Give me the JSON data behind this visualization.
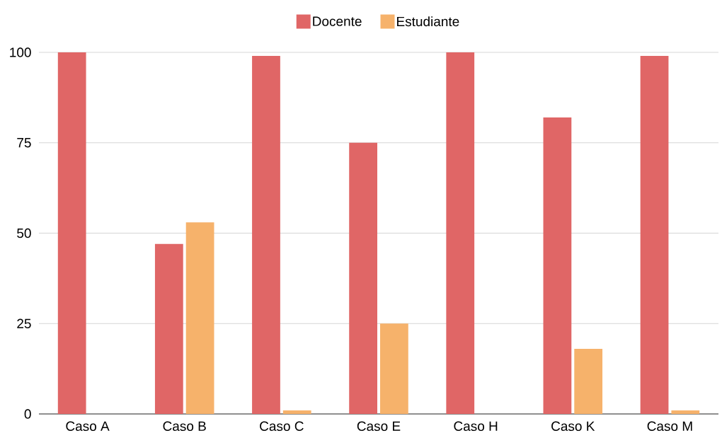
{
  "chart_data": {
    "type": "bar",
    "categories": [
      "Caso A",
      "Caso B",
      "Caso C",
      "Caso E",
      "Caso H",
      "Caso K",
      "Caso M"
    ],
    "series": [
      {
        "name": "Docente",
        "color": "#e06666",
        "values": [
          100,
          47,
          99,
          75,
          100,
          82,
          99
        ]
      },
      {
        "name": "Estudiante",
        "color": "#f6b26b",
        "values": [
          0,
          53,
          1,
          25,
          0,
          18,
          1
        ]
      }
    ],
    "ylim": [
      0,
      100
    ],
    "yticks": [
      0,
      25,
      50,
      75,
      100
    ],
    "grid": "y",
    "legend": "top"
  }
}
